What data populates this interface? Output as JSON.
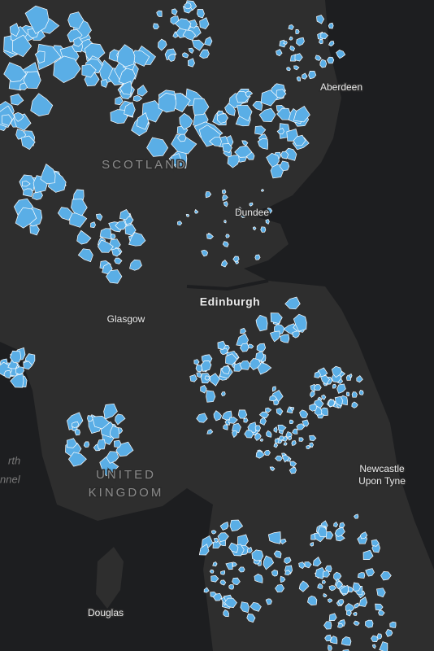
{
  "map": {
    "places": [
      "Aberdeen",
      "Dundee",
      "Edinburgh",
      "Glasgow",
      "Newcastle",
      "Upon Tyne",
      "Douglas"
    ],
    "regions": [
      "SCOTLAND",
      "UNITED",
      "KINGDOM"
    ],
    "water": [
      "rth",
      "nnel"
    ]
  }
}
